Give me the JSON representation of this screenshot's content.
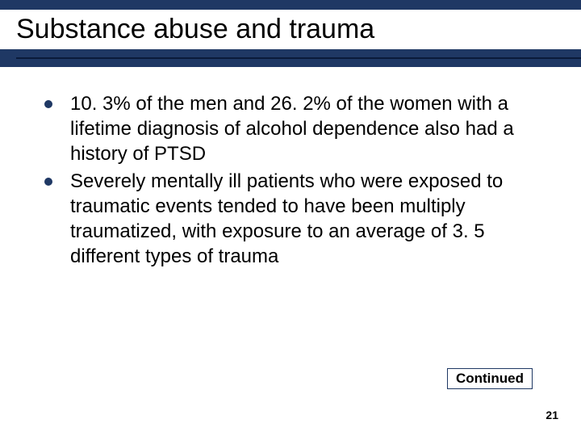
{
  "title": "Substance abuse and trauma",
  "bullets": [
    "10. 3% of the men and 26. 2% of the women with a lifetime diagnosis of alcohol dependence also had a history of PTSD",
    "Severely mentally ill patients who were exposed to traumatic events tended to have been multiply traumatized, with exposure to an average of 3. 5 different types of trauma"
  ],
  "continued_label": "Continued",
  "page_number": "21",
  "colors": {
    "band": "#1f3864",
    "bullet": "#1f3864",
    "text": "#000000",
    "background": "#ffffff"
  },
  "fonts": {
    "title_size": 34,
    "body_size": 24,
    "continued_size": 17,
    "pagenum_size": 14
  }
}
